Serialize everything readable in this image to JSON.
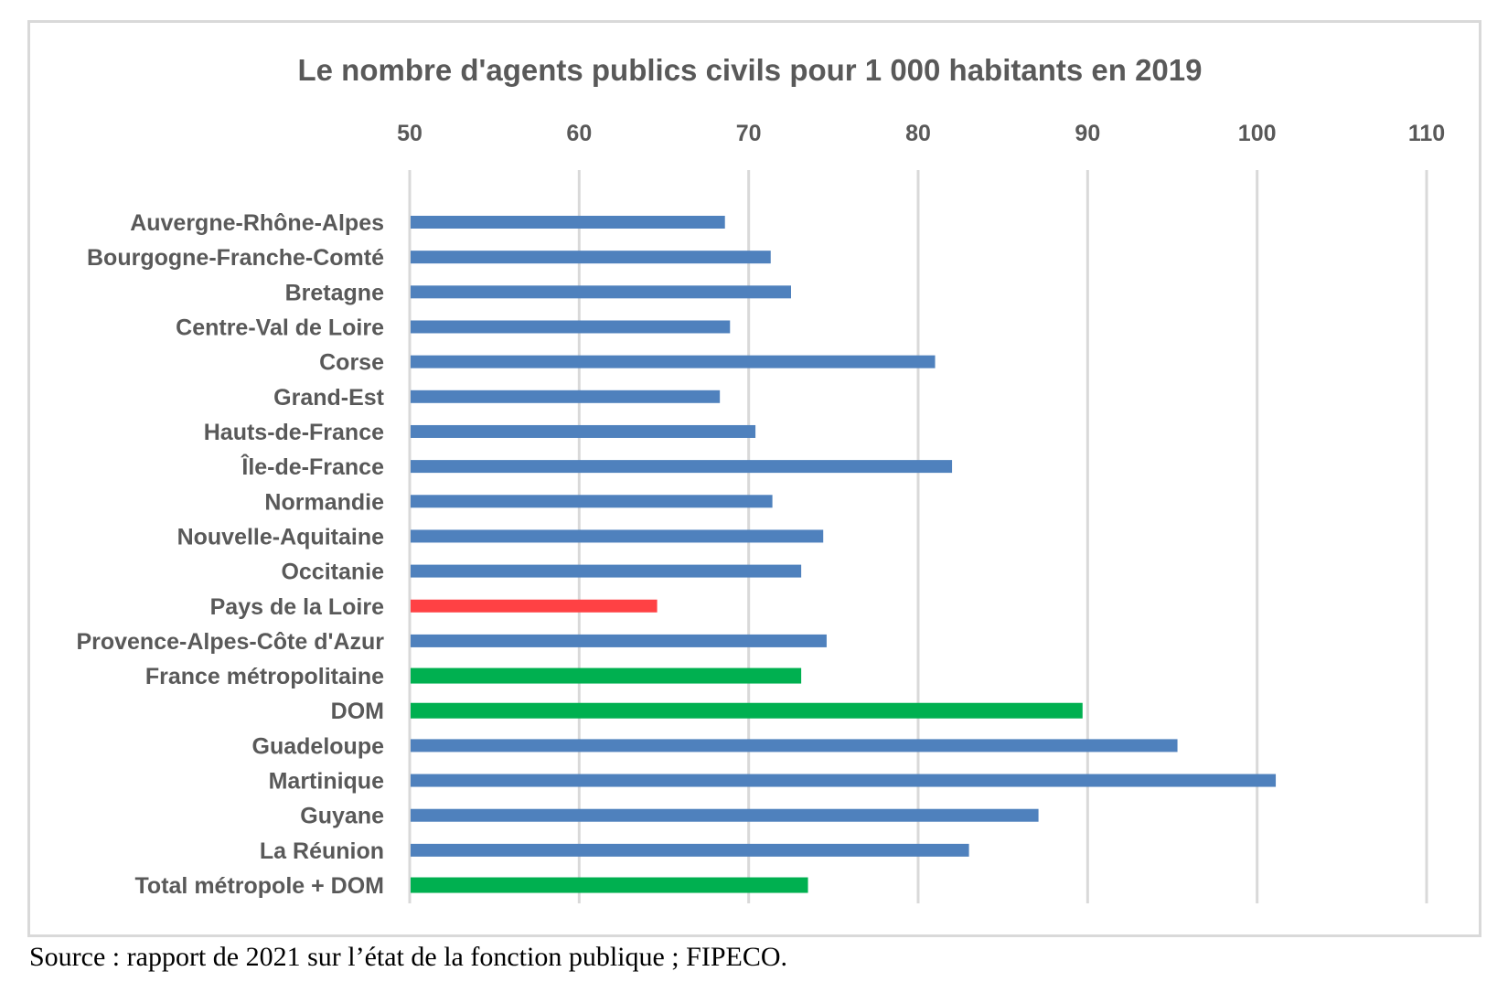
{
  "source_note": "Source : rapport de 2021 sur l’état de la fonction publique ; FIPECO.",
  "colors": {
    "default_bar": "#4f81bd",
    "highlight_red": "#ff4144",
    "aggregate_green": "#00b050",
    "grid": "#d9d9d9",
    "text": "#595959"
  },
  "chart_data": {
    "type": "bar",
    "orientation": "horizontal",
    "title": "Le nombre d'agents publics civils pour 1 000 habitants en 2019",
    "xlabel": "",
    "ylabel": "",
    "xlim": [
      50,
      110
    ],
    "x_ticks": [
      50,
      60,
      70,
      80,
      90,
      100,
      110
    ],
    "x_axis_position": "top",
    "grid": true,
    "legend": "none",
    "categories": [
      "Auvergne-Rhône-Alpes",
      "Bourgogne-Franche-Comté",
      "Bretagne",
      "Centre-Val de Loire",
      "Corse",
      "Grand-Est",
      "Hauts-de-France",
      "Île-de-France",
      "Normandie",
      "Nouvelle-Aquitaine",
      "Occitanie",
      "Pays de la Loire",
      "Provence-Alpes-Côte d'Azur",
      "France métropolitaine",
      "DOM",
      "Guadeloupe",
      "Martinique",
      "Guyane",
      "La Réunion",
      "Total métropole + DOM"
    ],
    "values": [
      68.6,
      71.3,
      72.5,
      68.9,
      81.0,
      68.3,
      70.4,
      82.0,
      71.4,
      74.4,
      73.1,
      64.6,
      74.6,
      73.1,
      89.7,
      95.3,
      101.1,
      87.1,
      83.0,
      73.5
    ],
    "bar_colors": [
      "default_bar",
      "default_bar",
      "default_bar",
      "default_bar",
      "default_bar",
      "default_bar",
      "default_bar",
      "default_bar",
      "default_bar",
      "default_bar",
      "default_bar",
      "highlight_red",
      "default_bar",
      "aggregate_green",
      "aggregate_green",
      "default_bar",
      "default_bar",
      "default_bar",
      "default_bar",
      "aggregate_green"
    ]
  }
}
